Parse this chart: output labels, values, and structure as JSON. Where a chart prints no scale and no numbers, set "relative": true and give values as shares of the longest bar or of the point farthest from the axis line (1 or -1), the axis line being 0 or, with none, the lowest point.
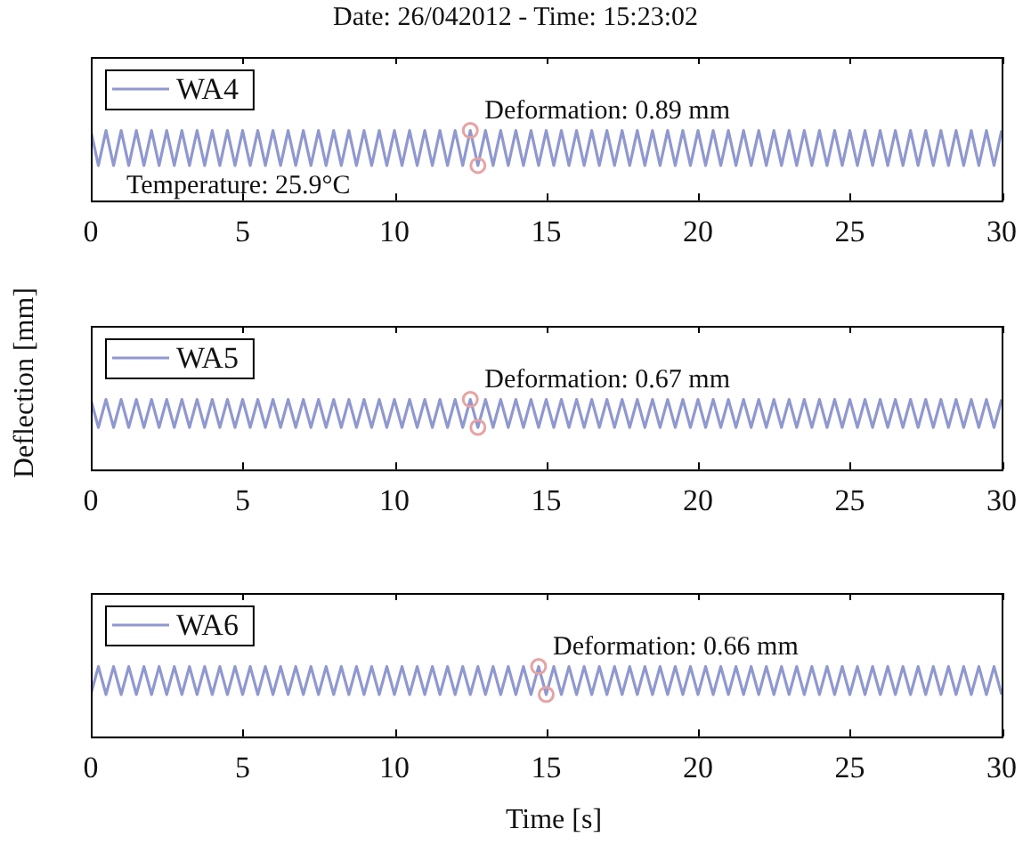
{
  "chart_data": [
    {
      "type": "line",
      "title": "Date: 26/042012 - Time: 15:23:02",
      "relative": true,
      "legend": "top left",
      "tick_labels": "x",
      "grid": false,
      "xlim": [
        0,
        30
      ],
      "xticks": [
        0,
        5,
        10,
        15,
        20,
        25,
        30
      ],
      "x": [
        0,
        0.25,
        0.5,
        0.75,
        1,
        1.25,
        1.5,
        1.75,
        2,
        2.25,
        2.5,
        2.75,
        3,
        3.25,
        3.5,
        3.75,
        4,
        4.25,
        4.5,
        4.75,
        5,
        5.25,
        5.5,
        5.75,
        6,
        6.25,
        6.5,
        6.75,
        7,
        7.25,
        7.5,
        7.75,
        8,
        8.25,
        8.5,
        8.75,
        9,
        9.25,
        9.5,
        9.75,
        10,
        10.25,
        10.5,
        10.75,
        11,
        11.25,
        11.5,
        11.75,
        12,
        12.25,
        12.5,
        12.75,
        13,
        13.25,
        13.5,
        13.75,
        14,
        14.25,
        14.5,
        14.75,
        15,
        15.25,
        15.5,
        15.75,
        16,
        16.25,
        16.5,
        16.75,
        17,
        17.25,
        17.5,
        17.75,
        18,
        18.25,
        18.5,
        18.75,
        19,
        19.25,
        19.5,
        19.75,
        20,
        20.25,
        20.5,
        20.75,
        21,
        21.25,
        21.5,
        21.75,
        22,
        22.25,
        22.5,
        22.75,
        23,
        23.25,
        23.5,
        23.75,
        24,
        24.25,
        24.5,
        24.75,
        25,
        25.25,
        25.5,
        25.75,
        26,
        26.25,
        26.5,
        26.75,
        27,
        27.25,
        27.5,
        27.75,
        28,
        28.25,
        28.5,
        28.75,
        29,
        29.25,
        29.5,
        29.75,
        30
      ],
      "series": [
        {
          "name": "WA4",
          "color": "#8f98cf",
          "values": [
            1,
            0.5,
            1,
            0.5,
            1,
            0.5,
            1,
            0.5,
            1,
            0.5,
            1,
            0.5,
            1,
            0.5,
            1,
            0.5,
            1,
            0.5,
            1,
            0.5,
            1,
            0.5,
            1,
            0.5,
            1,
            0.5,
            1,
            0.5,
            1,
            0.5,
            1,
            0.5,
            1,
            0.5,
            1,
            0.5,
            1,
            0.5,
            1,
            0.5,
            1,
            0.5,
            1,
            0.5,
            1,
            0.5,
            1,
            0.5,
            1,
            0.5,
            1,
            0.5,
            1,
            0.5,
            1,
            0.5,
            1,
            0.5,
            1,
            0.5,
            1,
            0.5,
            1,
            0.5,
            1,
            0.5,
            1,
            0.5,
            1,
            0.5,
            1,
            0.5,
            1,
            0.5,
            1,
            0.5,
            1,
            0.5,
            1,
            0.5,
            1,
            0.5,
            1,
            0.5,
            1,
            0.5,
            1,
            0.5,
            1,
            0.5,
            1,
            0.5,
            1,
            0.5,
            1,
            0.5,
            1,
            0.5,
            1,
            0.5,
            1,
            0.5,
            1,
            0.5,
            1,
            0.5,
            1,
            0.5,
            1,
            0.5,
            1,
            0.5,
            1,
            0.5,
            1,
            0.5,
            1,
            0.5,
            1,
            0.5,
            1
          ]
        },
        {
          "type": "scatter",
          "color": "#e6a3a3",
          "x": [
            12.5,
            12.75
          ],
          "values": [
            1,
            0.5
          ]
        }
      ],
      "annotations": [
        "Deformation: 0.89 mm",
        "Temperature: 25.9°C"
      ]
    },
    {
      "type": "line",
      "ylabel": "Deflection [mm]",
      "relative": true,
      "legend": "top left",
      "tick_labels": "x",
      "grid": false,
      "xlim": [
        0,
        30
      ],
      "xticks": [
        0,
        5,
        10,
        15,
        20,
        25,
        30
      ],
      "x": [
        0,
        0.25,
        0.5,
        0.75,
        1,
        1.25,
        1.5,
        1.75,
        2,
        2.25,
        2.5,
        2.75,
        3,
        3.25,
        3.5,
        3.75,
        4,
        4.25,
        4.5,
        4.75,
        5,
        5.25,
        5.5,
        5.75,
        6,
        6.25,
        6.5,
        6.75,
        7,
        7.25,
        7.5,
        7.75,
        8,
        8.25,
        8.5,
        8.75,
        9,
        9.25,
        9.5,
        9.75,
        10,
        10.25,
        10.5,
        10.75,
        11,
        11.25,
        11.5,
        11.75,
        12,
        12.25,
        12.5,
        12.75,
        13,
        13.25,
        13.5,
        13.75,
        14,
        14.25,
        14.5,
        14.75,
        15,
        15.25,
        15.5,
        15.75,
        16,
        16.25,
        16.5,
        16.75,
        17,
        17.25,
        17.5,
        17.75,
        18,
        18.25,
        18.5,
        18.75,
        19,
        19.25,
        19.5,
        19.75,
        20,
        20.25,
        20.5,
        20.75,
        21,
        21.25,
        21.5,
        21.75,
        22,
        22.25,
        22.5,
        22.75,
        23,
        23.25,
        23.5,
        23.75,
        24,
        24.25,
        24.5,
        24.75,
        25,
        25.25,
        25.5,
        25.75,
        26,
        26.25,
        26.5,
        26.75,
        27,
        27.25,
        27.5,
        27.75,
        28,
        28.25,
        28.5,
        28.75,
        29,
        29.25,
        29.5,
        29.75,
        30
      ],
      "series": [
        {
          "name": "WA5",
          "color": "#8f98cf",
          "values": [
            1,
            0.6,
            1,
            0.6,
            1,
            0.6,
            1,
            0.6,
            1,
            0.6,
            1,
            0.6,
            1,
            0.6,
            1,
            0.6,
            1,
            0.6,
            1,
            0.6,
            1,
            0.6,
            1,
            0.6,
            1,
            0.6,
            1,
            0.6,
            1,
            0.6,
            1,
            0.6,
            1,
            0.6,
            1,
            0.6,
            1,
            0.6,
            1,
            0.6,
            1,
            0.6,
            1,
            0.6,
            1,
            0.6,
            1,
            0.6,
            1,
            0.6,
            1,
            0.6,
            1,
            0.6,
            1,
            0.6,
            1,
            0.6,
            1,
            0.6,
            1,
            0.6,
            1,
            0.6,
            1,
            0.6,
            1,
            0.6,
            1,
            0.6,
            1,
            0.6,
            1,
            0.6,
            1,
            0.6,
            1,
            0.6,
            1,
            0.6,
            1,
            0.6,
            1,
            0.6,
            1,
            0.6,
            1,
            0.6,
            1,
            0.6,
            1,
            0.6,
            1,
            0.6,
            1,
            0.6,
            1,
            0.6,
            1,
            0.6,
            1,
            0.6,
            1,
            0.6,
            1,
            0.6,
            1,
            0.6,
            1,
            0.6,
            1,
            0.6,
            1,
            0.6,
            1,
            0.6,
            1,
            0.6,
            1,
            0.6,
            1
          ]
        },
        {
          "type": "scatter",
          "color": "#e6a3a3",
          "x": [
            12.5,
            12.75
          ],
          "values": [
            1,
            0.6
          ]
        }
      ],
      "annotations": [
        "Deformation: 0.67 mm"
      ]
    },
    {
      "type": "line",
      "xlabel": "Time [s]",
      "relative": true,
      "legend": "top left",
      "tick_labels": "x",
      "grid": false,
      "xlim": [
        0,
        30
      ],
      "xticks": [
        0,
        5,
        10,
        15,
        20,
        25,
        30
      ],
      "x": [
        0,
        0.25,
        0.5,
        0.75,
        1,
        1.25,
        1.5,
        1.75,
        2,
        2.25,
        2.5,
        2.75,
        3,
        3.25,
        3.5,
        3.75,
        4,
        4.25,
        4.5,
        4.75,
        5,
        5.25,
        5.5,
        5.75,
        6,
        6.25,
        6.5,
        6.75,
        7,
        7.25,
        7.5,
        7.75,
        8,
        8.25,
        8.5,
        8.75,
        9,
        9.25,
        9.5,
        9.75,
        10,
        10.25,
        10.5,
        10.75,
        11,
        11.25,
        11.5,
        11.75,
        12,
        12.25,
        12.5,
        12.75,
        13,
        13.25,
        13.5,
        13.75,
        14,
        14.25,
        14.5,
        14.75,
        15,
        15.25,
        15.5,
        15.75,
        16,
        16.25,
        16.5,
        16.75,
        17,
        17.25,
        17.5,
        17.75,
        18,
        18.25,
        18.5,
        18.75,
        19,
        19.25,
        19.5,
        19.75,
        20,
        20.25,
        20.5,
        20.75,
        21,
        21.25,
        21.5,
        21.75,
        22,
        22.25,
        22.5,
        22.75,
        23,
        23.25,
        23.5,
        23.75,
        24,
        24.25,
        24.5,
        24.75,
        25,
        25.25,
        25.5,
        25.75,
        26,
        26.25,
        26.5,
        26.75,
        27,
        27.25,
        27.5,
        27.75,
        28,
        28.25,
        28.5,
        28.75,
        29,
        29.25,
        29.5,
        29.75,
        30
      ],
      "series": [
        {
          "name": "WA6",
          "color": "#8f98cf",
          "values": [
            0.6,
            1,
            0.6,
            1,
            0.6,
            1,
            0.6,
            1,
            0.6,
            1,
            0.6,
            1,
            0.6,
            1,
            0.6,
            1,
            0.6,
            1,
            0.6,
            1,
            0.6,
            1,
            0.6,
            1,
            0.6,
            1,
            0.6,
            1,
            0.6,
            1,
            0.6,
            1,
            0.6,
            1,
            0.6,
            1,
            0.6,
            1,
            0.6,
            1,
            0.6,
            1,
            0.6,
            1,
            0.6,
            1,
            0.6,
            1,
            0.6,
            1,
            0.6,
            1,
            0.6,
            1,
            0.6,
            1,
            0.6,
            1,
            0.6,
            1,
            0.6,
            1,
            0.6,
            1,
            0.6,
            1,
            0.6,
            1,
            0.6,
            1,
            0.6,
            1,
            0.6,
            1,
            0.6,
            1,
            0.6,
            1,
            0.6,
            1,
            0.6,
            1,
            0.6,
            1,
            0.6,
            1,
            0.6,
            1,
            0.6,
            1,
            0.6,
            1,
            0.6,
            1,
            0.6,
            1,
            0.6,
            1,
            0.6,
            1,
            0.6,
            1,
            0.6,
            1,
            0.6,
            1,
            0.6,
            1,
            0.6,
            1,
            0.6,
            1,
            0.6,
            1,
            0.6,
            1,
            0.6,
            1,
            0.6,
            1,
            0.6
          ]
        },
        {
          "type": "scatter",
          "color": "#e6a3a3",
          "x": [
            14.75,
            15
          ],
          "values": [
            1,
            0.6
          ]
        }
      ],
      "annotations": [
        "Deformation: 0.66 mm"
      ]
    }
  ]
}
